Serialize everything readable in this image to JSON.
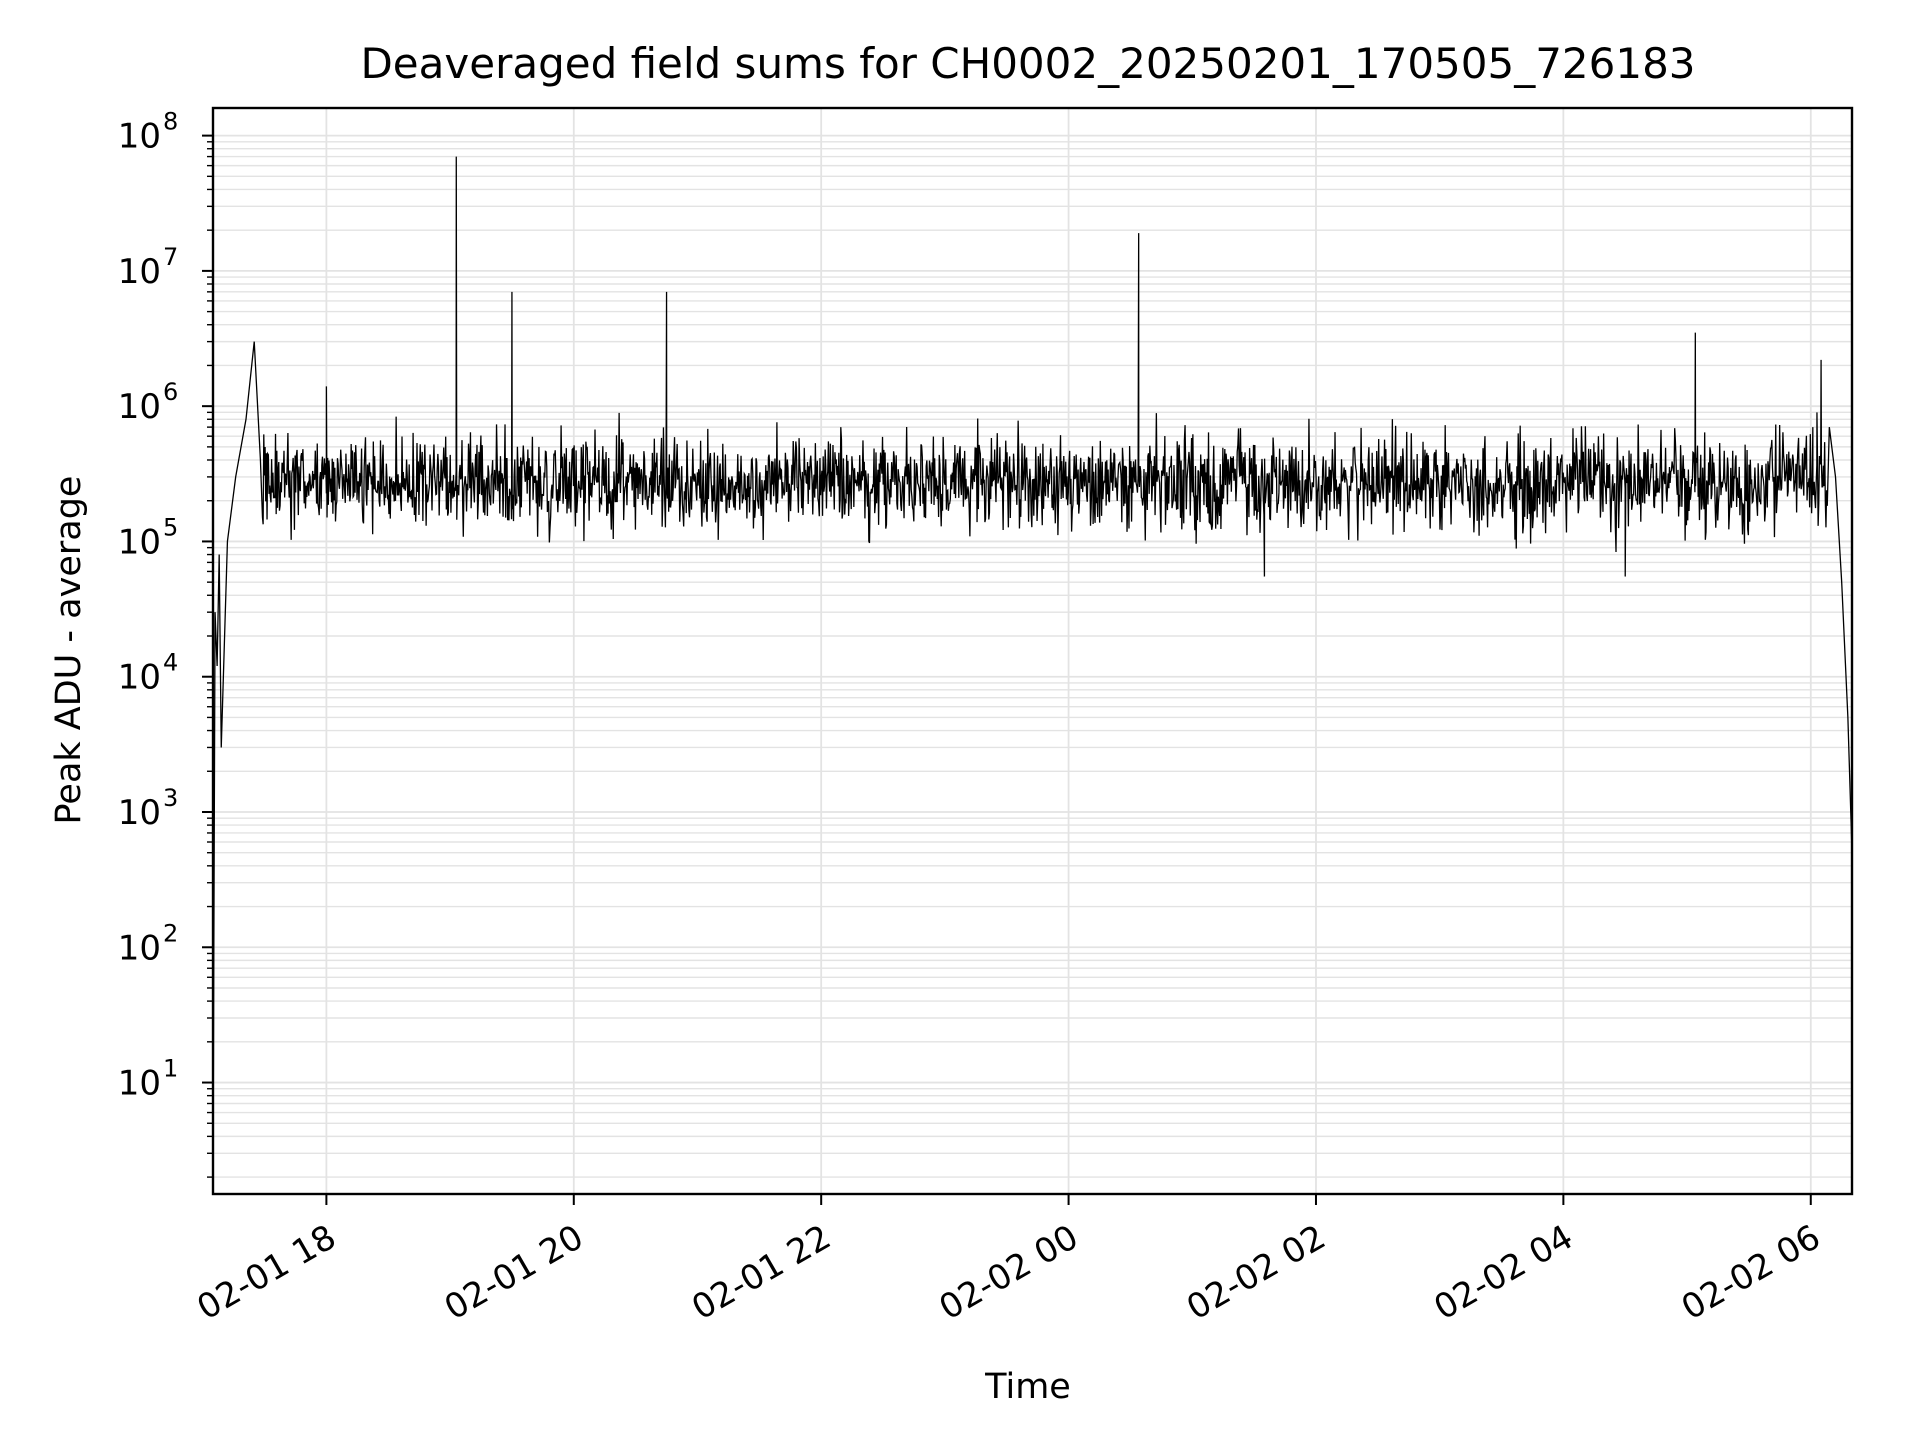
{
  "chart_data": {
    "type": "line",
    "title": "Deaveraged field sums for CH0002_20250201_170505_726183",
    "xlabel": "Time",
    "ylabel": "Peak ADU - average",
    "yscale": "log",
    "ylim": [
      1.5,
      160000000
    ],
    "xlim": [
      "2025-02-01 17:05",
      "2025-02-02 06:20"
    ],
    "x_ticks": [
      {
        "t": "2025-02-01 18:00",
        "label": "02-01 18"
      },
      {
        "t": "2025-02-01 20:00",
        "label": "02-01 20"
      },
      {
        "t": "2025-02-01 22:00",
        "label": "02-01 22"
      },
      {
        "t": "2025-02-02 00:00",
        "label": "02-02 00"
      },
      {
        "t": "2025-02-02 02:00",
        "label": "02-02 02"
      },
      {
        "t": "2025-02-02 04:00",
        "label": "02-02 04"
      },
      {
        "t": "2025-02-02 06:00",
        "label": "02-02 06"
      }
    ],
    "y_ticks": [
      {
        "v": 10,
        "base": "10",
        "exp": "1"
      },
      {
        "v": 100,
        "base": "10",
        "exp": "2"
      },
      {
        "v": 1000,
        "base": "10",
        "exp": "3"
      },
      {
        "v": 10000,
        "base": "10",
        "exp": "4"
      },
      {
        "v": 100000,
        "base": "10",
        "exp": "5"
      },
      {
        "v": 1000000,
        "base": "10",
        "exp": "6"
      },
      {
        "v": 10000000,
        "base": "10",
        "exp": "7"
      },
      {
        "v": 100000000,
        "base": "10",
        "exp": "8"
      }
    ],
    "grid": true,
    "legend": "none",
    "line_color": "#000000",
    "grid_color": "#e3e3e3",
    "series": [
      {
        "baseline_level": 270000,
        "points": [
          [
            "2025-02-01 17:05",
            2
          ],
          [
            "2025-02-01 17:06",
            30000
          ],
          [
            "2025-02-01 17:07",
            12000
          ],
          [
            "2025-02-01 17:08",
            80000
          ],
          [
            "2025-02-01 17:09",
            3000
          ],
          [
            "2025-02-01 17:12",
            100000
          ],
          [
            "2025-02-01 17:16",
            300000
          ],
          [
            "2025-02-01 17:21",
            800000
          ],
          [
            "2025-02-01 17:25",
            3000000
          ],
          [
            "2025-02-01 17:28",
            400000
          ],
          [
            "2025-02-01 18:00",
            1400000
          ],
          [
            "2025-02-01 19:03",
            70000000
          ],
          [
            "2025-02-01 19:30",
            7000000
          ],
          [
            "2025-02-01 20:45",
            7000000
          ],
          [
            "2025-02-02 00:34",
            19000000
          ],
          [
            "2025-02-02 01:35",
            55000
          ],
          [
            "2025-02-02 04:30",
            55000
          ],
          [
            "2025-02-02 05:04",
            3500000
          ],
          [
            "2025-02-02 06:01",
            700000
          ],
          [
            "2025-02-02 06:03",
            900000
          ],
          [
            "2025-02-02 06:05",
            2200000
          ],
          [
            "2025-02-02 06:09",
            700000
          ],
          [
            "2025-02-02 06:12",
            300000
          ],
          [
            "2025-02-02 06:15",
            50000
          ],
          [
            "2025-02-02 06:18",
            5000
          ],
          [
            "2025-02-02 06:20",
            500
          ]
        ]
      }
    ]
  }
}
